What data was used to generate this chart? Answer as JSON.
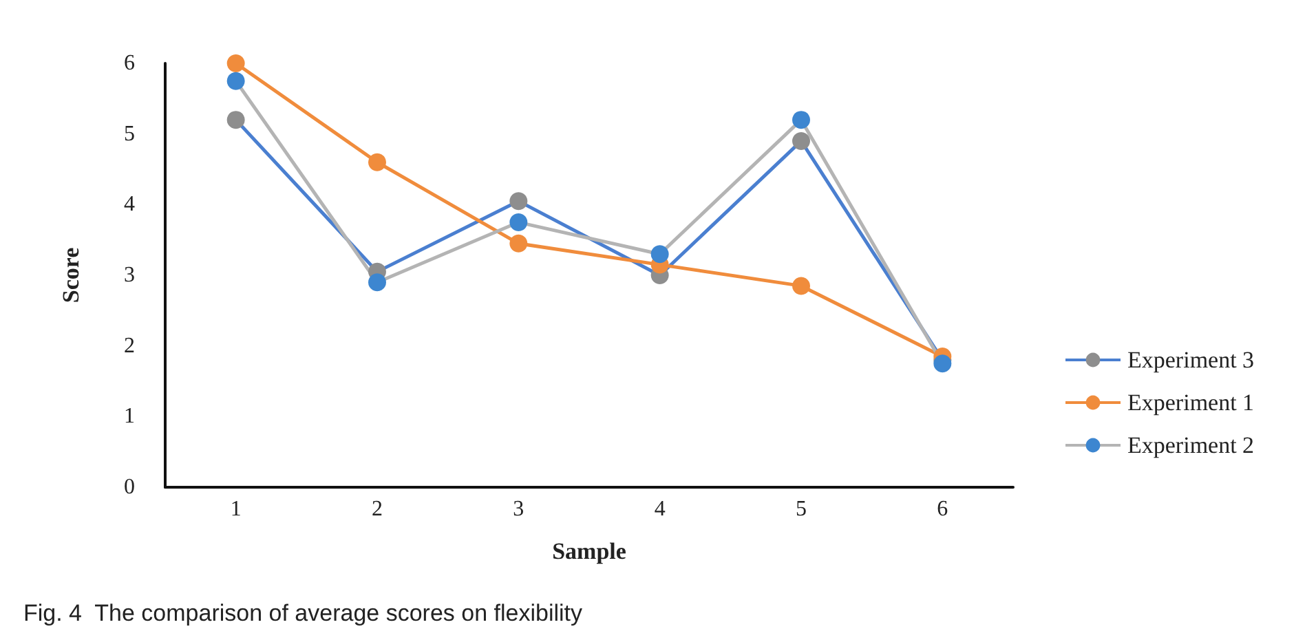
{
  "chart_data": {
    "type": "line",
    "xlabel": "Sample",
    "ylabel": "Score",
    "categories": [
      "1",
      "2",
      "3",
      "4",
      "5",
      "6"
    ],
    "series": [
      {
        "name": "Experiment 3",
        "color": "#4a7fd0",
        "colors": [
          "#8e8e8e",
          "#8e8e8e",
          "#8e8e8e",
          "#8e8e8e",
          "#8e8e8e",
          "#8e8e8e"
        ],
        "values": [
          5.2,
          3.05,
          4.05,
          3.0,
          4.9,
          1.8
        ]
      },
      {
        "name": "Experiment 1",
        "color": "#f08c3c",
        "values": [
          6.0,
          4.6,
          3.45,
          3.15,
          2.85,
          1.85
        ]
      },
      {
        "name": "Experiment 2",
        "color": "#b4b4b4",
        "colors": [
          "#3d86d0",
          "#3d86d0",
          "#3d86d0",
          "#3d86d0",
          "#3d86d0",
          "#3d86d0"
        ],
        "values": [
          5.75,
          2.9,
          3.75,
          3.3,
          5.2,
          1.75
        ]
      }
    ],
    "ylim": [
      0,
      6
    ],
    "yticks": [
      0,
      1,
      2,
      3,
      4,
      5,
      6
    ],
    "grid": false,
    "legend": "right",
    "marker": "circle",
    "line_style": "solid",
    "annotations": [
      "Fig. 4  The comparison of average scores on flexibility"
    ]
  }
}
